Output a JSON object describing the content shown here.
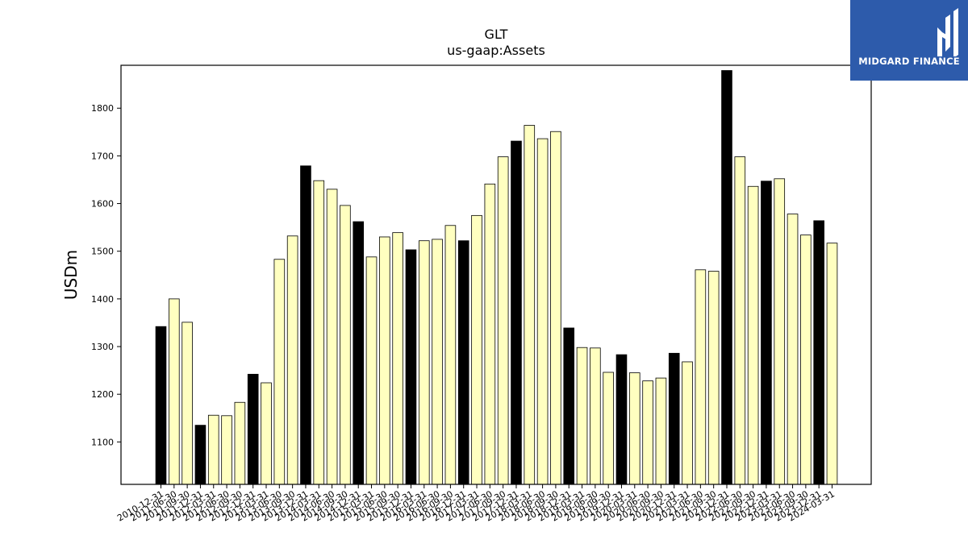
{
  "logo": {
    "text": "MIDGARD FINANCE"
  },
  "colors": {
    "highlight_bar": "#000000",
    "normal_bar": "#ffffc0",
    "logo_bg": "#2d5bab"
  },
  "chart_data": {
    "type": "bar",
    "title": "GLT",
    "subtitle": "us-gaap:Assets",
    "xlabel": "",
    "ylabel": "USDm",
    "ylim": [
      1011,
      1890
    ],
    "yticks": [
      1100,
      1200,
      1300,
      1400,
      1500,
      1600,
      1700,
      1800
    ],
    "grid": false,
    "categories": [
      "2010-12-31",
      "2011-06-30",
      "2011-09-30",
      "2011-12-31",
      "2012-03-31",
      "2012-06-30",
      "2012-09-30",
      "2012-12-31",
      "2013-03-31",
      "2013-06-30",
      "2013-09-30",
      "2013-12-31",
      "2014-03-31",
      "2014-06-30",
      "2014-09-30",
      "2014-12-31",
      "2015-03-31",
      "2015-06-30",
      "2015-09-30",
      "2015-12-31",
      "2016-03-31",
      "2016-06-30",
      "2016-09-30",
      "2016-12-31",
      "2017-03-31",
      "2017-06-30",
      "2017-09-30",
      "2017-12-31",
      "2018-03-31",
      "2018-06-30",
      "2018-09-30",
      "2018-12-31",
      "2019-03-31",
      "2019-06-30",
      "2019-09-30",
      "2019-12-31",
      "2020-03-31",
      "2020-06-30",
      "2020-09-30",
      "2020-12-31",
      "2021-03-31",
      "2021-06-30",
      "2021-09-30",
      "2021-12-31",
      "2022-06-30",
      "2022-09-30",
      "2022-12-31",
      "2023-03-31",
      "2023-06-30",
      "2023-09-30",
      "2023-12-31",
      "2024-03-31"
    ],
    "values": [
      1342,
      1400,
      1351,
      1135,
      1156,
      1155,
      1183,
      1242,
      1224,
      1483,
      1532,
      1679,
      1648,
      1630,
      1596,
      1562,
      1488,
      1530,
      1539,
      1503,
      1522,
      1525,
      1554,
      1522,
      1575,
      1641,
      1698,
      1731,
      1764,
      1736,
      1751,
      1339,
      1298,
      1297,
      1246,
      1283,
      1245,
      1228,
      1234,
      1286,
      1268,
      1461,
      1458,
      1879,
      1698,
      1636,
      1647,
      1652,
      1578,
      1534,
      1564,
      1517
    ],
    "highlighted": [
      true,
      false,
      false,
      true,
      false,
      false,
      false,
      true,
      false,
      false,
      false,
      true,
      false,
      false,
      false,
      true,
      false,
      false,
      false,
      true,
      false,
      false,
      false,
      true,
      false,
      false,
      false,
      true,
      false,
      false,
      false,
      true,
      false,
      false,
      false,
      true,
      false,
      false,
      false,
      true,
      false,
      false,
      false,
      true,
      false,
      false,
      true,
      false,
      false,
      false,
      true,
      false
    ]
  }
}
